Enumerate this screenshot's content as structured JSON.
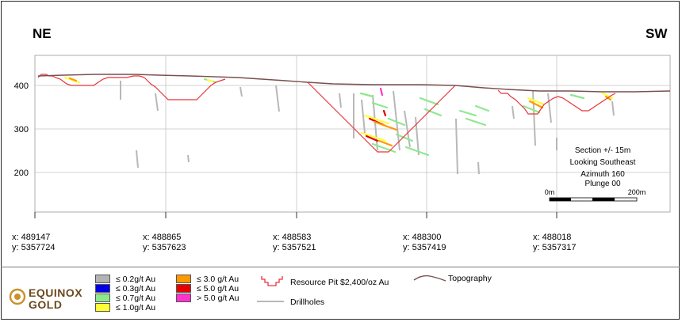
{
  "directions": {
    "left": "NE",
    "right": "SW"
  },
  "y_axis": {
    "ticks": [
      "400",
      "300",
      "200"
    ]
  },
  "coordinates": [
    {
      "x": "x: 489147",
      "y": "y: 5357724"
    },
    {
      "x": "x: 488865",
      "y": "y: 5357623"
    },
    {
      "x": "x: 488583",
      "y": "y: 5357521"
    },
    {
      "x": "x: 488300",
      "y": "y: 5357419"
    },
    {
      "x": "x: 488018",
      "y": "y: 5357317"
    }
  ],
  "section_info": {
    "line1": "Section +/- 15m",
    "line2": "Looking Southeast",
    "line3": "Azimuth 160",
    "line4": "Plunge 00"
  },
  "scale_bar": {
    "start": "0m",
    "end": "200m"
  },
  "legend": {
    "grades": [
      {
        "label": "≤ 0.2g/t Au",
        "color": "#b3b3b3"
      },
      {
        "label": "≤ 0.3g/t Au",
        "color": "#0000e6"
      },
      {
        "label": "≤ 0.7g/t Au",
        "color": "#8ee88e"
      },
      {
        "label": "≤ 1.0g/t Au",
        "color": "#ffff33"
      },
      {
        "label": "≤ 3.0 g/t Au",
        "color": "#ff9900"
      },
      {
        "label": "≤ 5.0 g/t Au",
        "color": "#e60000"
      },
      {
        "label": "> 5.0 g/t Au",
        "color": "#ff33cc"
      }
    ],
    "pit_label": "Resource Pit $2,400/oz Au",
    "topo_label": "Topography",
    "drillhole_label": "Drillholes"
  },
  "logo": {
    "line1": "EQUINOX",
    "line2": "GOLD",
    "icon": "equinox-gold-sun-icon"
  },
  "colors": {
    "pit": "#e8343a",
    "topography": "#7a4f4f",
    "drillhole": "#b8b8b8",
    "grid": "#bdbdbd"
  }
}
